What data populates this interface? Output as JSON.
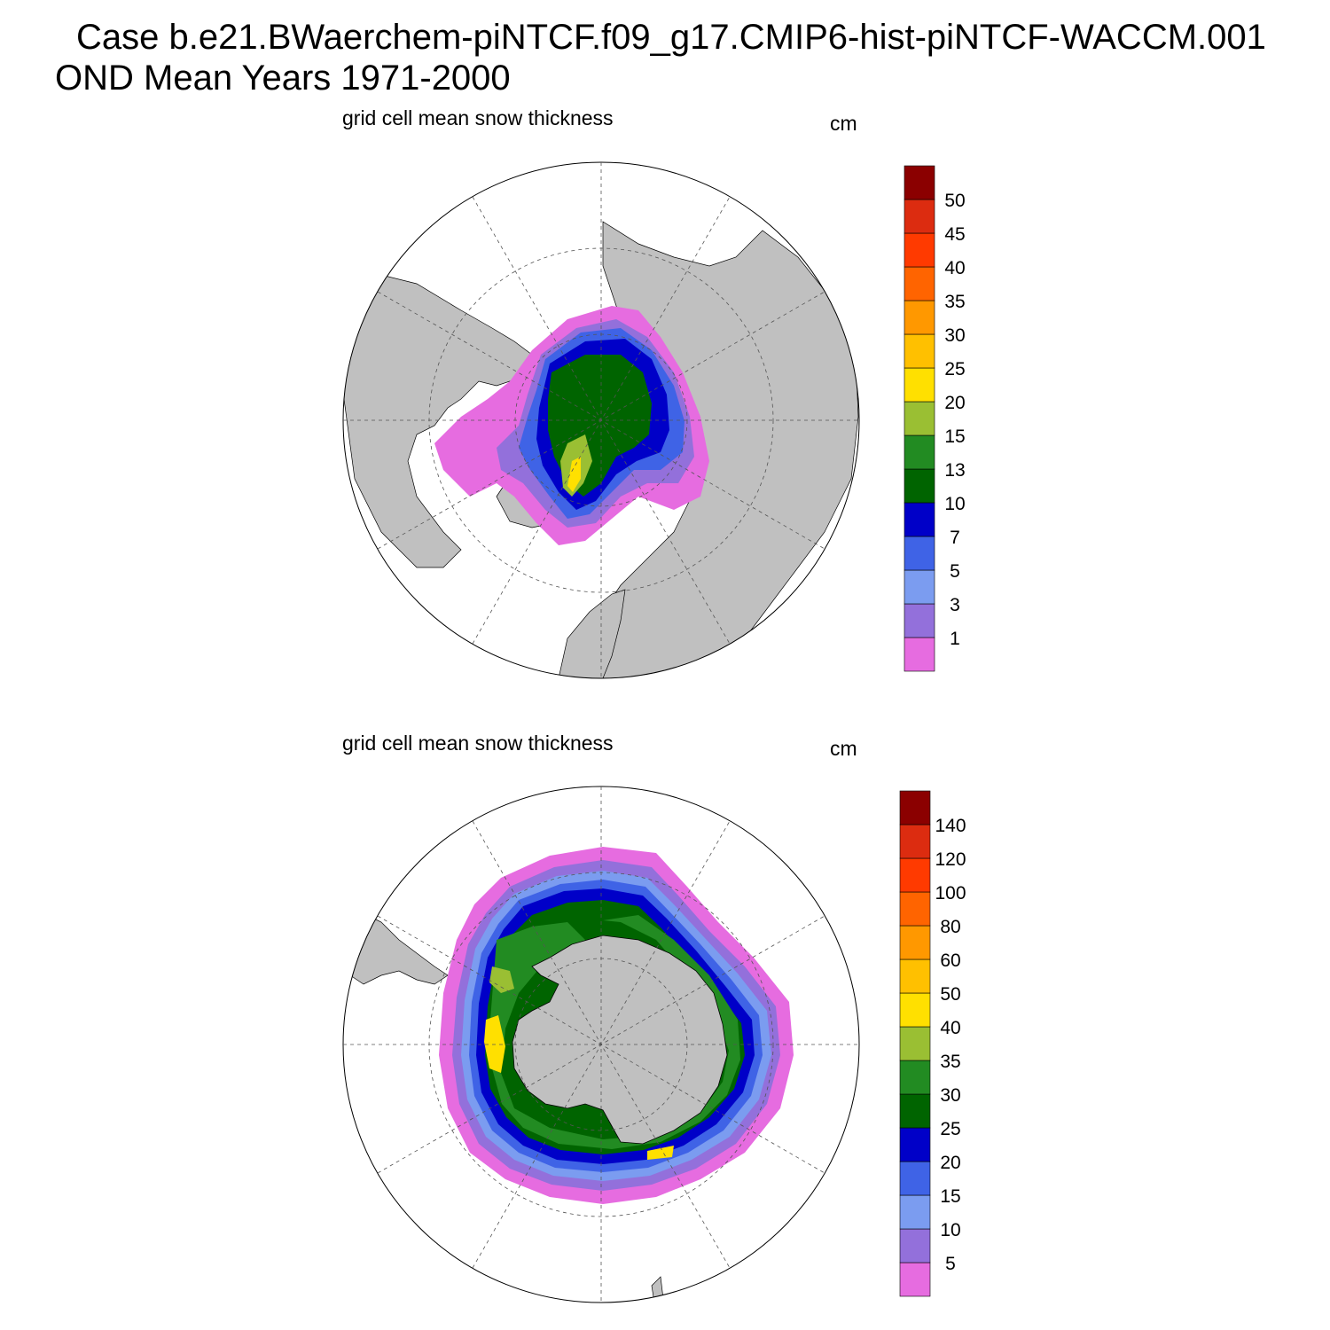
{
  "title": {
    "line1": "Case b.e21.BWaerchem-piNTCF.f09_g17.CMIP6-hist-piNTCF-WACCM.001",
    "line2": "OND Mean   Years 1971-2000"
  },
  "colors": {
    "land": "#c0c0c0",
    "scale": [
      "#e66ce0",
      "#9370db",
      "#7b9cf0",
      "#3f63e6",
      "#0000c8",
      "#006400",
      "#228b22",
      "#9abf33",
      "#ffe000",
      "#ffc000",
      "#ff9800",
      "#ff6400",
      "#ff3a00",
      "#dc2c10",
      "#8b0000"
    ]
  },
  "panels": [
    {
      "id": "north",
      "title": "grid cell mean snow thickness",
      "units": "cm",
      "colorbar_labels": [
        "1",
        "3",
        "5",
        "7",
        "10",
        "13",
        "15",
        "20",
        "25",
        "30",
        "35",
        "40",
        "45",
        "50"
      ]
    },
    {
      "id": "south",
      "title": "grid cell mean snow thickness",
      "units": "cm",
      "colorbar_labels": [
        "5",
        "10",
        "15",
        "20",
        "25",
        "30",
        "35",
        "40",
        "50",
        "60",
        "80",
        "100",
        "120",
        "140"
      ]
    }
  ]
}
